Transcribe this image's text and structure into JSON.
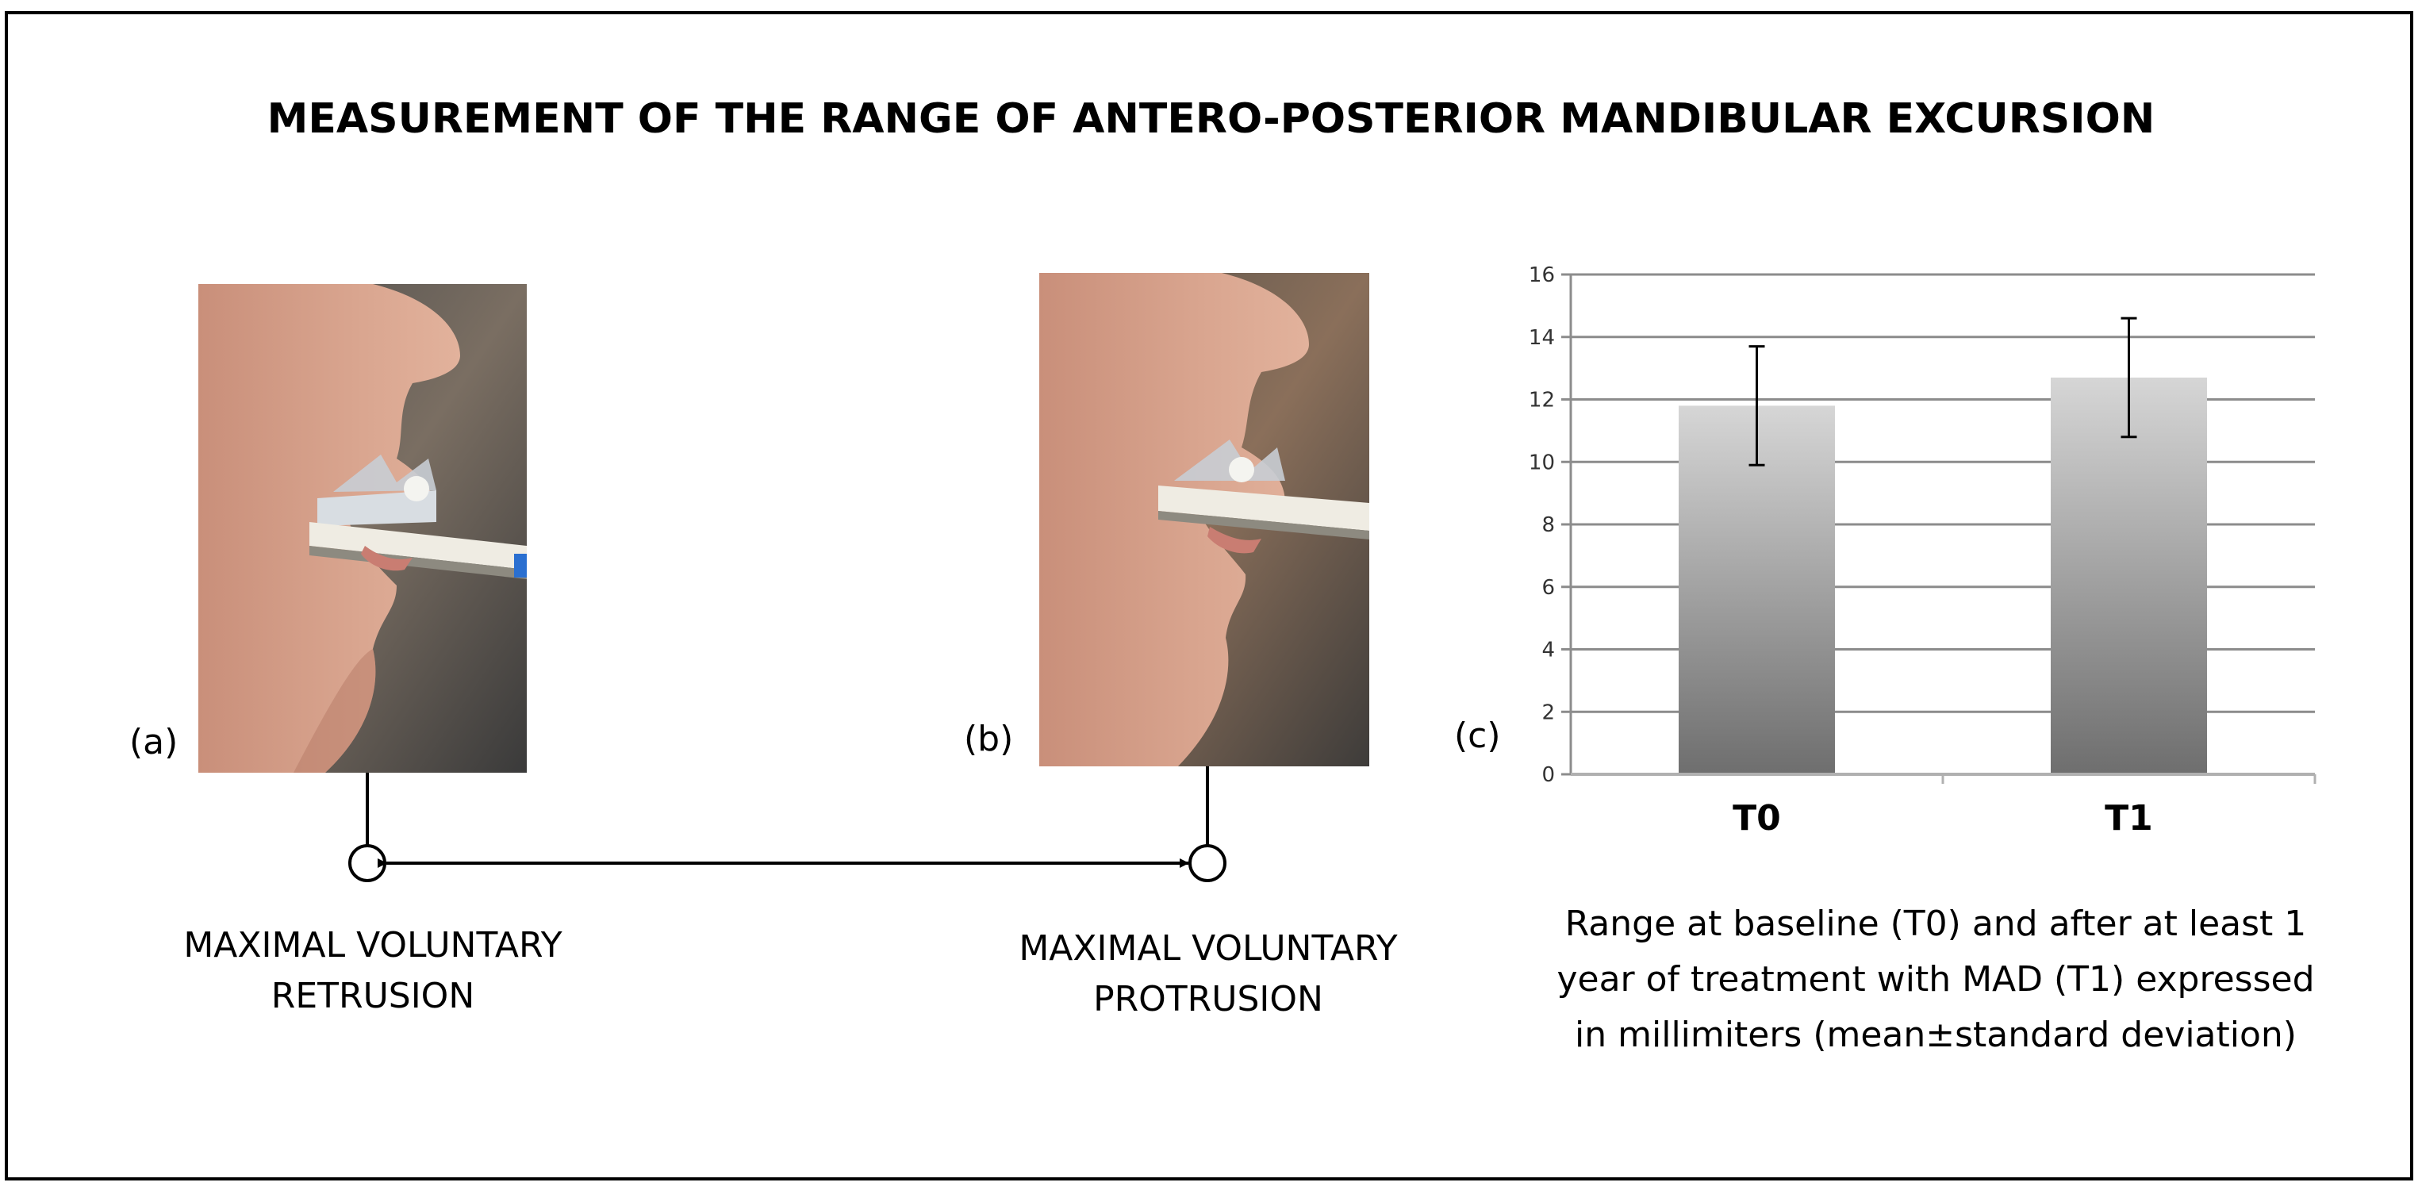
{
  "title": "MEASUREMENT OF THE RANGE OF ANTERO-POSTERIOR MANDIBULAR EXCURSION",
  "panel_a": {
    "label": "(a)",
    "caption_line1": "MAXIMAL VOLUNTARY",
    "caption_line2": "RETRUSION"
  },
  "panel_b": {
    "label": "(b)",
    "caption_line1": "MAXIMAL VOLUNTARY",
    "caption_line2": "PROTRUSION"
  },
  "panel_c": {
    "label": "(c)",
    "caption_lines": [
      "Range at baseline (T0) and after at least 1",
      "year of treatment with MAD (T1) expressed",
      "in millimiters (mean±standard deviation)"
    ]
  },
  "chart_data": {
    "type": "bar",
    "categories": [
      "T0",
      "T1"
    ],
    "values": [
      11.8,
      12.7
    ],
    "error": [
      1.9,
      1.9
    ],
    "ylim": [
      0,
      16
    ],
    "yticks": [
      0,
      2,
      4,
      6,
      8,
      10,
      12,
      14,
      16
    ],
    "grid": true,
    "title": "",
    "xlabel": "",
    "ylabel": ""
  }
}
